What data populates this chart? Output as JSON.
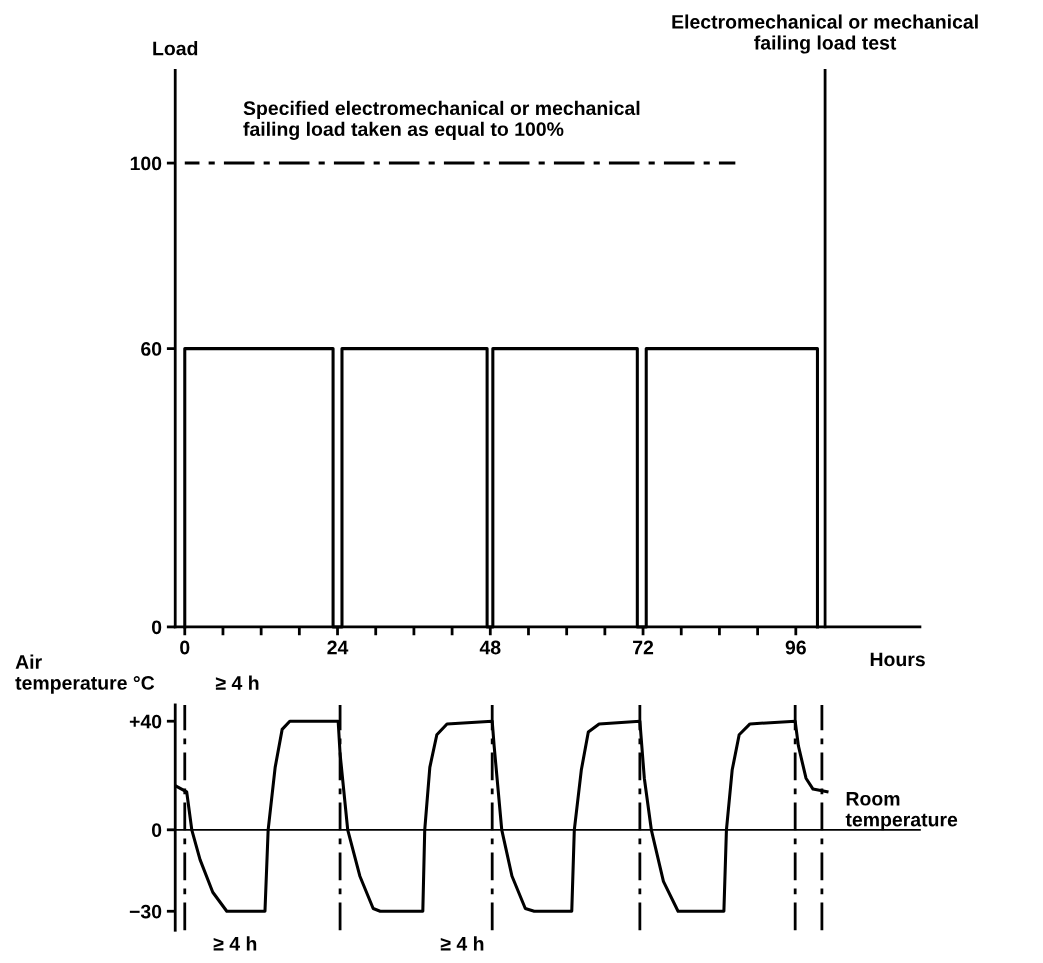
{
  "chart_data": [
    {
      "type": "line",
      "ylabel": "Load",
      "xlabel": "Hours",
      "xlim": [
        -1.5,
        115.5
      ],
      "ylim": [
        0,
        120
      ],
      "xticks": [
        0,
        {
          "value": 6,
          "label": null
        },
        {
          "value": 12,
          "label": null
        },
        {
          "value": 18,
          "label": null
        },
        24,
        {
          "value": 30,
          "label": null
        },
        {
          "value": 36,
          "label": null
        },
        {
          "value": 42,
          "label": null
        },
        48,
        {
          "value": 54,
          "label": null
        },
        {
          "value": 60,
          "label": null
        },
        {
          "value": 66,
          "label": null
        },
        72,
        {
          "value": 78,
          "label": null
        },
        {
          "value": 84,
          "label": null
        },
        {
          "value": 90,
          "label": null
        },
        96
      ],
      "yticks": [
        0,
        60,
        100
      ],
      "grid": false,
      "legend": false,
      "series": [
        {
          "color": "#000000",
          "x": [
            0,
            0,
            23.3,
            23.3,
            24.7,
            24.7,
            47.5,
            47.5,
            48.4,
            48.4,
            71.1,
            71.1,
            72.5,
            72.5,
            99.4,
            99.4
          ],
          "values": [
            0,
            60,
            60,
            0,
            0,
            60,
            60,
            0,
            0,
            60,
            60,
            0,
            0,
            60,
            60,
            0
          ]
        },
        {
          "color": "#000000",
          "x": [
            0,
            86.5
          ],
          "values": [
            100,
            100
          ],
          "line_style": "dashed"
        }
      ],
      "ref_lines": [
        {
          "axis": "x",
          "value": 100.6,
          "label": "Electromechanical or mechanical\nfailing load test",
          "color": "#000000"
        }
      ],
      "annotations": [
        "Specified electromechanical or mechanical\nfailing load taken as equal to 100%"
      ]
    },
    {
      "type": "line",
      "ylabel": "Air\ntemperature °C",
      "xlim": [
        -1.5,
        115.5
      ],
      "ylim": [
        -37,
        46
      ],
      "tick_labels": "y",
      "yticks": [
        {
          "value": -30,
          "label": "−30"
        },
        0,
        {
          "value": 40,
          "label": "+40"
        }
      ],
      "grid": false,
      "legend": false,
      "series": [
        {
          "color": "#000000",
          "x": [
            -1.3,
            0.3,
            1.1,
            2.4,
            4.4,
            6.6,
            12.6,
            13.1,
            14.2,
            15.3,
            16.5,
            24.1,
            24.4,
            25.6,
            27.5,
            29.6,
            30.7,
            37.4,
            37.7,
            38.5,
            39.6,
            41.2,
            48.3,
            48.6,
            49.8,
            51.4,
            53.5,
            54.9,
            60.8,
            61.2,
            62.3,
            63.4,
            65.1,
            71.5,
            72.2,
            73.3,
            75.2,
            77.5,
            84.7,
            85.1,
            86.0,
            87.1,
            88.8,
            95.9,
            96.4,
            97.6,
            98.7,
            100.9
          ],
          "values": [
            16,
            14,
            0,
            -11,
            -23,
            -30,
            -30,
            0,
            23,
            37,
            40,
            40,
            28,
            0,
            -17,
            -29,
            -30,
            -30,
            0,
            23,
            35,
            39,
            40,
            31,
            0,
            -17,
            -29,
            -30,
            -30,
            0,
            22,
            36,
            39,
            40,
            19,
            0,
            -19,
            -30,
            -30,
            0,
            22,
            35,
            39,
            40,
            31,
            19,
            15,
            14
          ]
        }
      ],
      "ref_lines": [
        {
          "axis": "x",
          "value": 0,
          "line_style": "dashed",
          "color": "#000000"
        },
        {
          "axis": "x",
          "value": 24.4,
          "line_style": "dashed",
          "color": "#000000"
        },
        {
          "axis": "x",
          "value": 48.3,
          "line_style": "dashed",
          "color": "#000000"
        },
        {
          "axis": "x",
          "value": 71.5,
          "line_style": "dashed",
          "color": "#000000"
        },
        {
          "axis": "x",
          "value": 95.9,
          "line_style": "dashed",
          "color": "#000000"
        },
        {
          "axis": "x",
          "value": 100.1,
          "line_style": "dashed",
          "color": "#000000"
        }
      ],
      "annotations": [
        "≥ 4 h",
        "≥ 4 h",
        "≥ 4 h",
        "Room\ntemperature"
      ]
    }
  ]
}
